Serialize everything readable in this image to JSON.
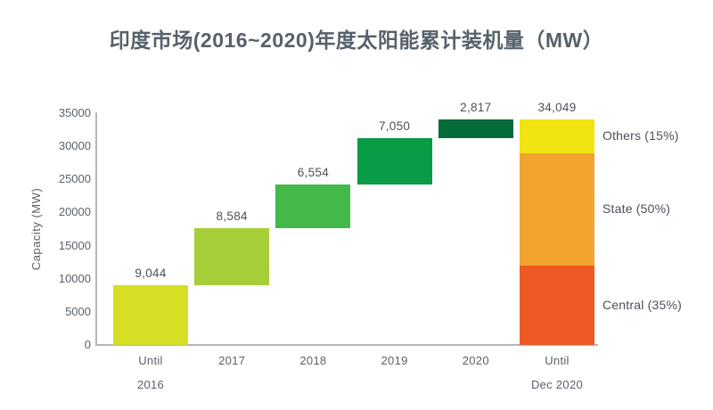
{
  "palette": {
    "title_text": "#57616b",
    "axis_text": "#5a6169",
    "value_text": "#4c5257",
    "legend_text": "#4b5158",
    "axis_line": "#b4b7b9"
  },
  "chart_data": {
    "type": "bar",
    "subtype": "waterfall-cumulative",
    "title": "印度市场(2016~2020)年度太阳能累计装机量（MW）",
    "xlabel": "",
    "ylabel": "Capacity (MW)",
    "ylim": [
      0,
      35000
    ],
    "yticks": [
      0,
      5000,
      10000,
      15000,
      20000,
      25000,
      30000,
      35000
    ],
    "grid": false,
    "legend_position": "right-of-last-bar",
    "categories": [
      "Until 2016",
      "2017",
      "2018",
      "2019",
      "2020",
      "Until Dec 2020"
    ],
    "bars": [
      {
        "label_lines": [
          "Until",
          "2016"
        ],
        "value": 9044,
        "display": "9,044",
        "start": 0,
        "end": 9044,
        "color": "#d6df23"
      },
      {
        "label_lines": [
          "2017"
        ],
        "value": 8584,
        "display": "8,584",
        "start": 9044,
        "end": 17628,
        "color": "#a5ce39"
      },
      {
        "label_lines": [
          "2018"
        ],
        "value": 6554,
        "display": "6,554",
        "start": 17628,
        "end": 24182,
        "color": "#43b94a"
      },
      {
        "label_lines": [
          "2019"
        ],
        "value": 7050,
        "display": "7,050",
        "start": 24182,
        "end": 31232,
        "color": "#0a9b47"
      },
      {
        "label_lines": [
          "2020"
        ],
        "value": 2817,
        "display": "2,817",
        "start": 31232,
        "end": 34049,
        "color": "#056b39"
      },
      {
        "label_lines": [
          "Until",
          "Dec 2020"
        ],
        "value": 34049,
        "display": "34,049",
        "start": 0,
        "end": 34049,
        "segments": [
          {
            "name": "Central",
            "pct": 35,
            "label": "Central (35%)",
            "color": "#ee5a23"
          },
          {
            "name": "State",
            "pct": 50,
            "label": "State (50%)",
            "color": "#f1a52f"
          },
          {
            "name": "Others",
            "pct": 15,
            "label": "Others (15%)",
            "color": "#f1e410"
          }
        ]
      }
    ]
  }
}
